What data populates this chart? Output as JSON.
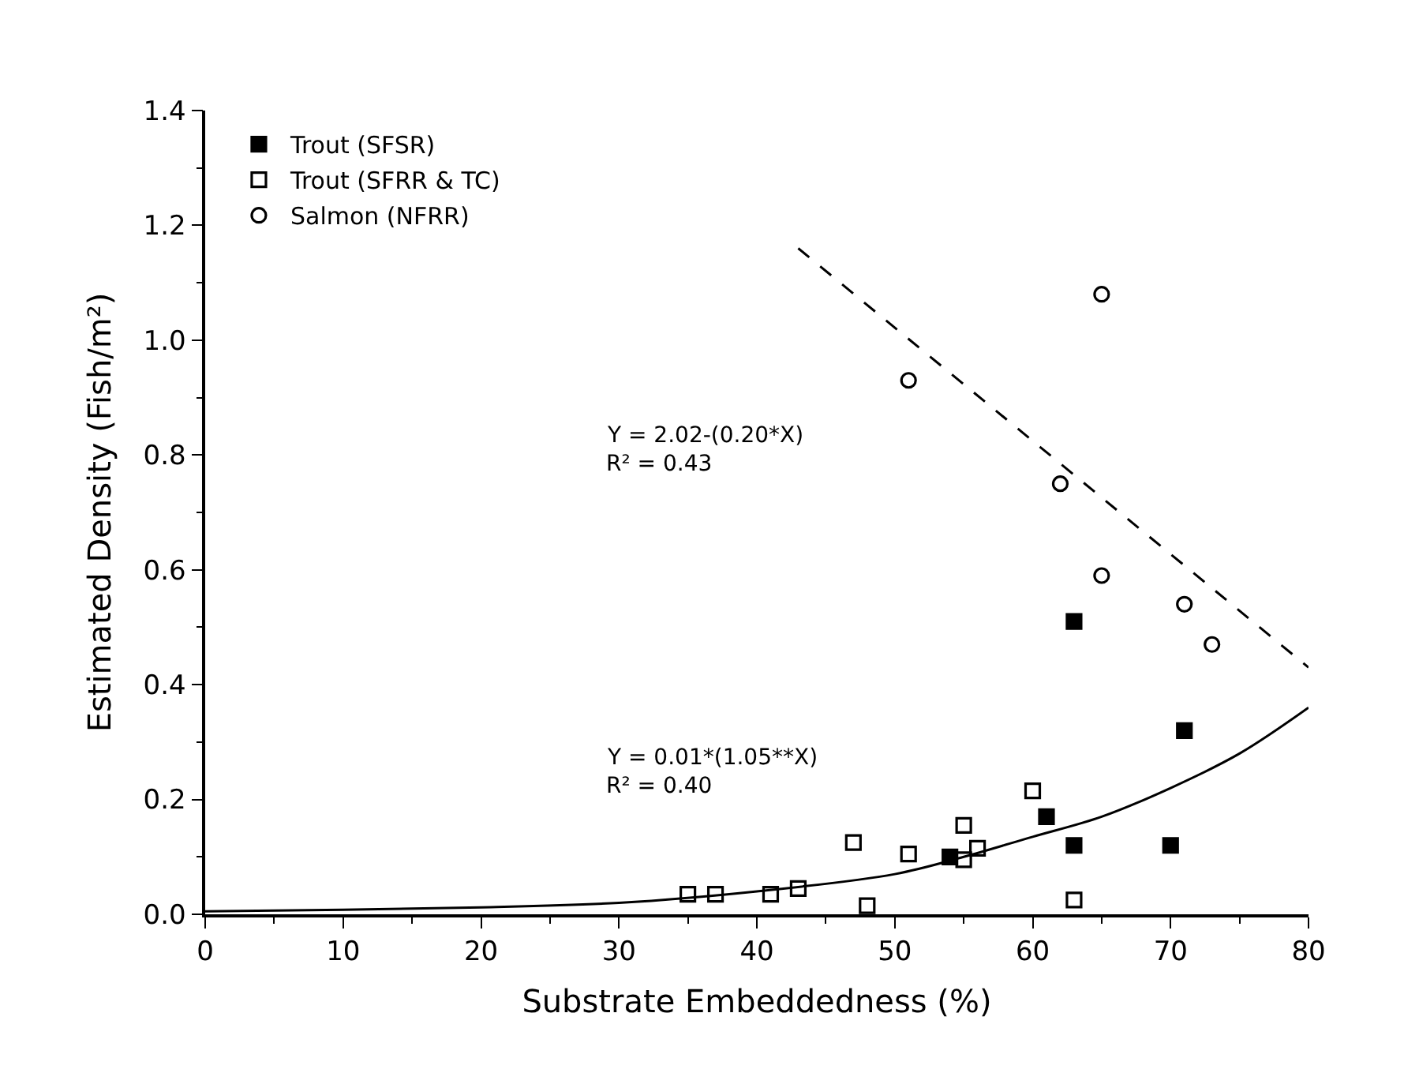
{
  "chart_data": {
    "type": "scatter",
    "xlabel": "Substrate Embeddedness (%)",
    "ylabel": "Estimated Density (Fish/m²)",
    "xlim": [
      0,
      80
    ],
    "xticks": [
      0,
      10,
      20,
      30,
      40,
      50,
      60,
      70,
      80
    ],
    "ylim": [
      0,
      1.4
    ],
    "yticks": [
      {
        "value": 0,
        "label": "0.0"
      },
      {
        "value": 0.2,
        "label": "0.2"
      },
      {
        "value": 0.4,
        "label": "0.4"
      },
      {
        "value": 0.6,
        "label": "0.6"
      },
      {
        "value": 0.8,
        "label": "0.8"
      },
      {
        "value": 1.0,
        "label": "1.0"
      },
      {
        "value": 1.2,
        "label": "1.2"
      },
      {
        "value": 1.4,
        "label": "1.4"
      }
    ],
    "legend": "top left",
    "series": [
      {
        "name": "Trout (SFSR)",
        "marker": "square",
        "color": "#000000",
        "x": [
          54,
          61,
          63,
          63,
          70,
          71
        ],
        "values": [
          0.1,
          0.17,
          0.51,
          0.12,
          0.12,
          0.32
        ]
      },
      {
        "name": "Trout (SFRR & TC)",
        "marker": "square-open",
        "color": "#000000",
        "x": [
          35,
          37,
          41,
          43,
          47,
          48,
          51,
          55,
          55,
          56,
          60,
          63
        ],
        "values": [
          0.035,
          0.035,
          0.035,
          0.045,
          0.125,
          0.015,
          0.105,
          0.155,
          0.095,
          0.115,
          0.215,
          0.025
        ]
      },
      {
        "name": "Salmon (NFRR)",
        "marker": "circle-open",
        "color": "#000000",
        "x": [
          51,
          62,
          65,
          65,
          71,
          73
        ],
        "values": [
          0.93,
          0.75,
          1.08,
          0.59,
          0.54,
          0.47
        ]
      },
      {
        "type": "line",
        "line_style": "dashed",
        "color": "#000000",
        "x": [
          43,
          80
        ],
        "values": [
          1.16,
          0.43
        ]
      },
      {
        "type": "line",
        "line_style": "solid",
        "color": "#000000",
        "x": [
          0,
          10,
          20,
          30,
          40,
          50,
          55,
          60,
          65,
          70,
          75,
          80
        ],
        "values": [
          0.005,
          0.008,
          0.012,
          0.02,
          0.04,
          0.07,
          0.1,
          0.135,
          0.17,
          0.22,
          0.28,
          0.36
        ]
      }
    ],
    "annotations": [
      "Y = 2.02-(0.20*X)",
      "R² = 0.43",
      "Y = 0.01*(1.05**X)",
      "R² = 0.40"
    ]
  }
}
